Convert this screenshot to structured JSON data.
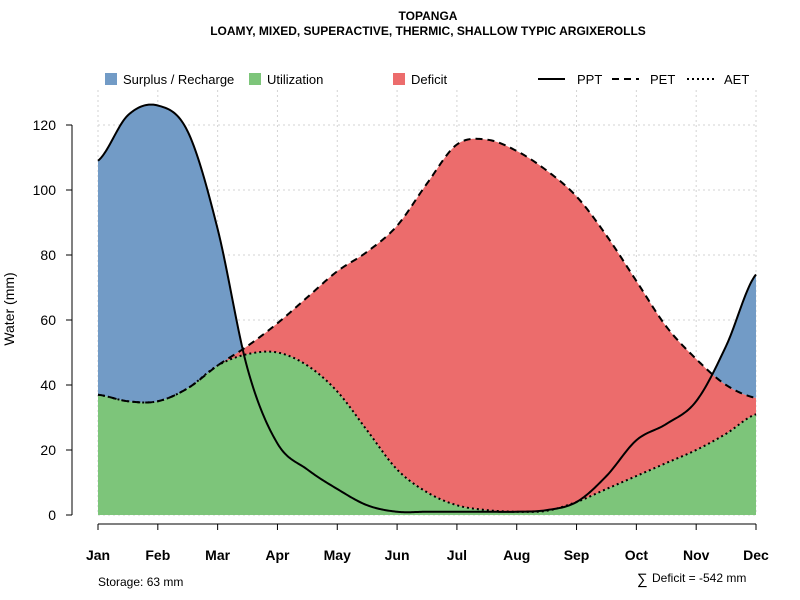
{
  "chart_data": {
    "type": "area",
    "title": "TOPANGA",
    "subtitle": "LOAMY, MIXED, SUPERACTIVE, THERMIC, SHALLOW TYPIC ARGIXEROLLS",
    "ylabel": "Water (mm)",
    "ylim": [
      0,
      130
    ],
    "yticks": [
      0,
      20,
      40,
      60,
      80,
      100,
      120
    ],
    "months": [
      "Jan",
      "Feb",
      "Mar",
      "Apr",
      "May",
      "Jun",
      "Jul",
      "Aug",
      "Sep",
      "Oct",
      "Nov",
      "Dec"
    ],
    "x": [
      0,
      0.5,
      1,
      1.5,
      2,
      2.5,
      3,
      3.5,
      4,
      4.5,
      5,
      5.5,
      6,
      6.5,
      7,
      7.5,
      8,
      8.5,
      9,
      9.5,
      10,
      10.5,
      11
    ],
    "series": [
      {
        "name": "PPT",
        "style": "solid",
        "values": [
          109,
          123,
          126,
          118,
          88,
          45,
          22,
          14,
          8,
          3,
          1,
          1,
          1,
          1,
          1,
          1.5,
          4,
          12,
          23,
          28,
          35,
          52,
          74
        ]
      },
      {
        "name": "PET",
        "style": "dashed",
        "values": [
          37,
          35,
          35,
          39,
          46,
          52,
          59,
          67,
          75,
          81,
          89,
          102,
          114,
          115.5,
          112,
          106,
          98,
          86,
          72,
          58,
          48,
          40,
          36
        ]
      },
      {
        "name": "AET",
        "style": "dotted",
        "values": [
          37,
          35,
          35,
          39,
          46,
          49.5,
          50,
          46,
          38,
          26,
          14,
          7,
          3,
          1.5,
          1,
          1.3,
          4,
          8,
          12,
          16,
          20,
          25,
          31
        ]
      }
    ],
    "legend": [
      {
        "label": "Surplus / Recharge",
        "kind": "fill",
        "color": "#729bc6"
      },
      {
        "label": "Utilization",
        "kind": "fill",
        "color": "#7dc57a"
      },
      {
        "label": "Deficit",
        "kind": "fill",
        "color": "#ec6c6c"
      },
      {
        "label": "PPT",
        "kind": "line",
        "style": "solid"
      },
      {
        "label": "PET",
        "kind": "line",
        "style": "dashed"
      },
      {
        "label": "AET",
        "kind": "line",
        "style": "dotted"
      }
    ],
    "colors": {
      "surplus": "#729bc6",
      "utilization": "#7dc57a",
      "deficit": "#ec6c6c",
      "line": "#000000",
      "grid": "#d3d3d3"
    },
    "grid": true,
    "legend_position": "top"
  },
  "footer": {
    "storage": "Storage: 63 mm",
    "deficit_symbol": "∑",
    "deficit": "Deficit = -542 mm"
  }
}
